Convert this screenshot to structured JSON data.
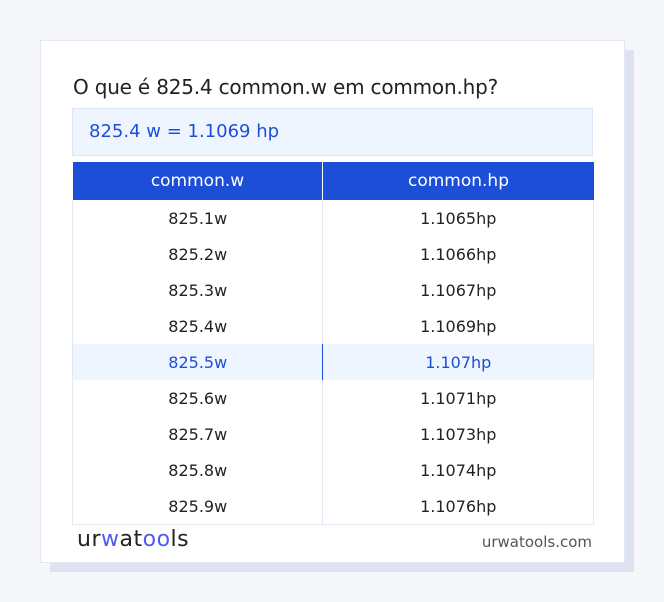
{
  "title": "O que é 825.4 common.w em common.hp?",
  "result": "825.4 w = 1.1069 hp",
  "table": {
    "headers": [
      "common.w",
      "common.hp"
    ],
    "rows": [
      [
        "825.1w",
        "1.1065hp"
      ],
      [
        "825.2w",
        "1.1066hp"
      ],
      [
        "825.3w",
        "1.1067hp"
      ],
      [
        "825.4w",
        "1.1069hp"
      ],
      [
        "825.5w",
        "1.107hp"
      ],
      [
        "825.6w",
        "1.1071hp"
      ],
      [
        "825.7w",
        "1.1073hp"
      ],
      [
        "825.8w",
        "1.1074hp"
      ],
      [
        "825.9w",
        "1.1076hp"
      ]
    ],
    "highlighted_row": 4
  },
  "footer": {
    "logo": "urwatools",
    "logo_parts": [
      "ur",
      "w",
      "a",
      "t",
      "oo",
      "ls"
    ],
    "site": "urwatools.com"
  },
  "colors": {
    "accent": "#1d4ed8",
    "highlight_bg": "#eef5ff"
  }
}
